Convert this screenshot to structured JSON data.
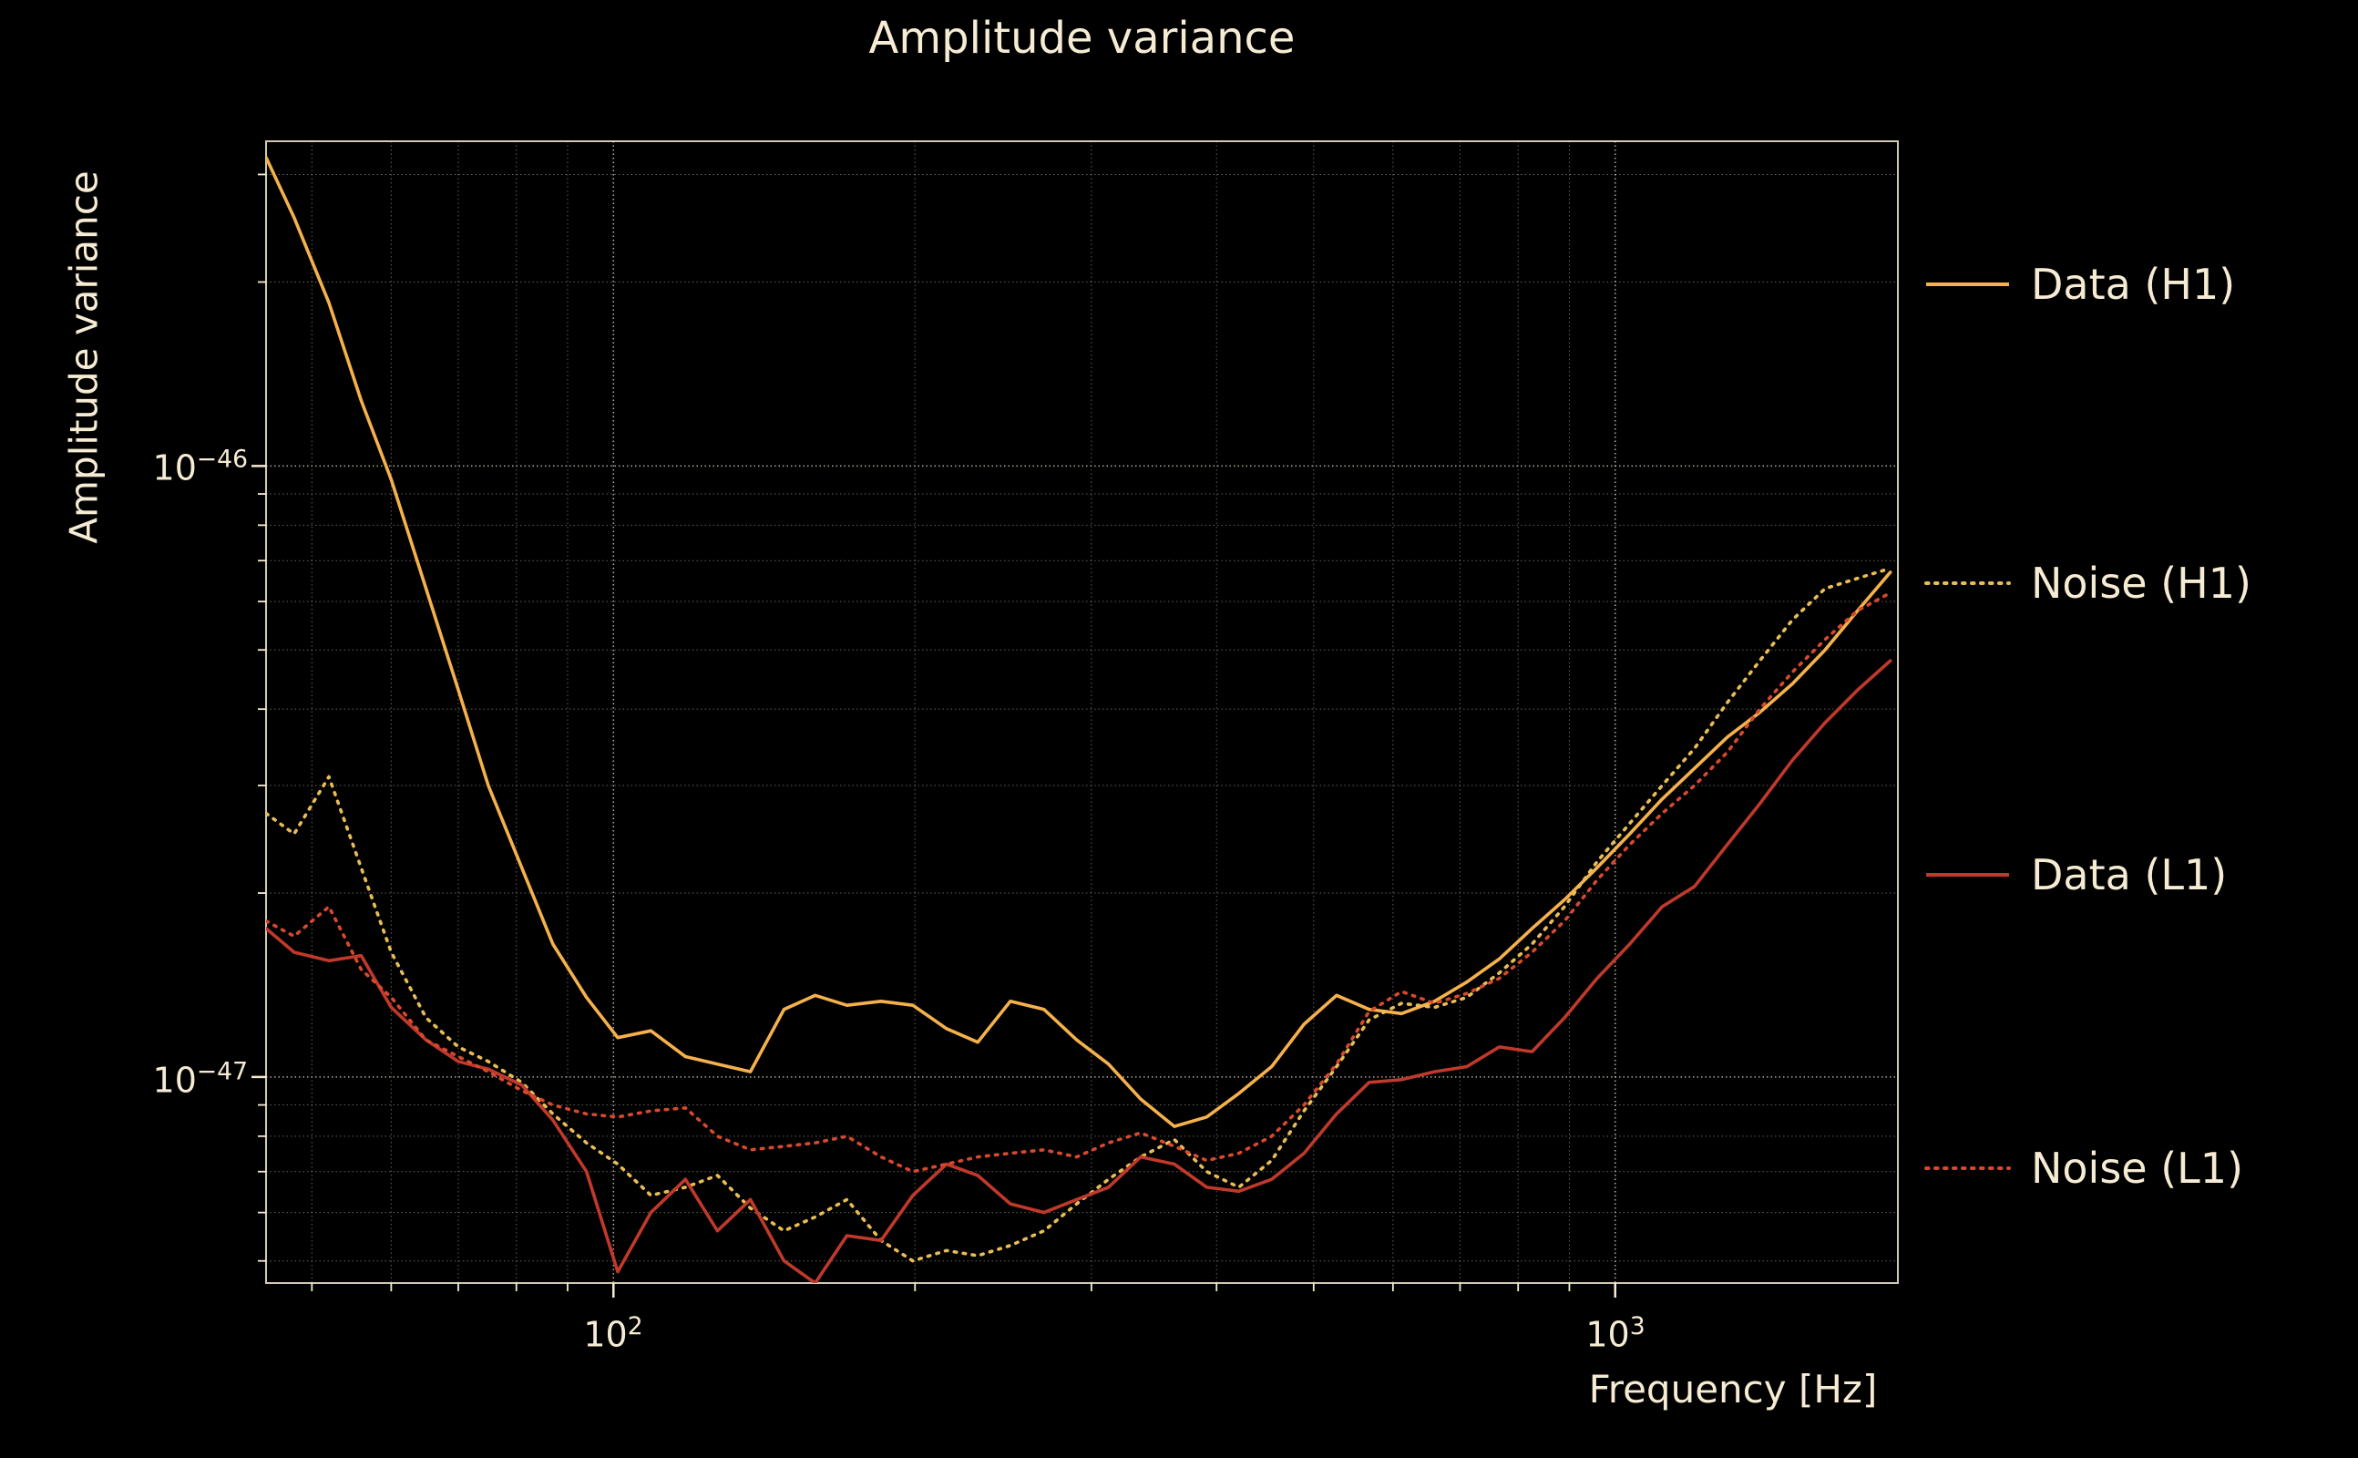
{
  "colors": {
    "bg": "#000000",
    "text": "#f6ecd4",
    "grid": "#eae3d0"
  },
  "axes": {
    "x_ticks": [
      {
        "base": "10",
        "exp": "2"
      },
      {
        "base": "10",
        "exp": "3"
      }
    ],
    "y_ticks": [
      {
        "base": "10",
        "exp": "−46"
      },
      {
        "base": "10",
        "exp": "−47"
      }
    ]
  },
  "chart_data": {
    "type": "line",
    "title": "Amplitude variance",
    "xlabel": "Frequency [Hz]",
    "ylabel": "Amplitude variance",
    "xscale": "log",
    "yscale": "log",
    "xlim": [
      45,
      1915
    ],
    "ylim": [
      4.6e-48,
      3.4e-46
    ],
    "grid": true,
    "legend_position": "right-outside",
    "y_unit": 1e-48,
    "y_unit_note": "series values are multiples of 1e-48",
    "x": [
      45,
      48,
      52,
      56,
      60,
      65,
      70,
      75,
      81,
      87,
      94,
      101,
      109,
      118,
      127,
      137,
      148,
      159,
      171,
      185,
      199,
      215,
      231,
      249,
      269,
      290,
      312,
      336,
      363,
      391,
      421,
      454,
      489,
      527,
      568,
      612,
      660,
      711,
      766,
      826,
      890,
      959,
      1034,
      1114,
      1200,
      1294,
      1394,
      1503,
      1620,
      1746,
      1882
    ],
    "series": [
      {
        "name": "Data (H1)",
        "style": "solid",
        "color": "#f5b14b",
        "values": [
          320,
          255,
          185,
          128,
          95,
          63,
          43,
          30,
          22,
          16.5,
          13.5,
          11.6,
          11.9,
          10.8,
          10.5,
          10.2,
          12.9,
          13.6,
          13.1,
          13.3,
          13.1,
          12.0,
          11.4,
          13.3,
          12.9,
          11.5,
          10.5,
          9.2,
          8.3,
          8.6,
          9.4,
          10.4,
          12.2,
          13.6,
          12.9,
          12.7,
          13.3,
          14.3,
          15.6,
          17.5,
          19.5,
          22,
          25,
          28.5,
          32,
          36,
          39.5,
          44,
          50,
          58,
          67
        ]
      },
      {
        "name": "Noise (H1)",
        "style": "dotted",
        "color": "#e9bd55",
        "values": [
          27,
          25,
          31,
          22,
          16,
          12.5,
          11.2,
          10.6,
          9.8,
          8.7,
          7.8,
          7.2,
          6.4,
          6.6,
          6.9,
          6.1,
          5.6,
          5.9,
          6.3,
          5.4,
          5.0,
          5.2,
          5.1,
          5.3,
          5.6,
          6.2,
          6.8,
          7.4,
          7.9,
          7.0,
          6.6,
          7.3,
          8.8,
          10.4,
          12.4,
          13.2,
          13.0,
          13.5,
          14.8,
          16.5,
          19,
          22.5,
          26,
          30,
          34.5,
          41,
          48,
          56,
          63,
          65.5,
          68
        ]
      },
      {
        "name": "Data (L1)",
        "style": "solid",
        "color": "#c0392b",
        "values": [
          17.5,
          16,
          15.5,
          15.8,
          13,
          11.5,
          10.6,
          10.3,
          9.7,
          8.5,
          7.0,
          4.8,
          6.0,
          6.8,
          5.6,
          6.3,
          5.0,
          4.6,
          5.5,
          5.4,
          6.4,
          7.2,
          6.9,
          6.2,
          6.0,
          6.3,
          6.6,
          7.4,
          7.2,
          6.6,
          6.5,
          6.8,
          7.5,
          8.7,
          9.8,
          9.9,
          10.2,
          10.4,
          11.2,
          11.0,
          12.5,
          14.5,
          16.5,
          19,
          20.5,
          24,
          28,
          33,
          38,
          43,
          48
        ]
      },
      {
        "name": "Noise (L1)",
        "style": "dotted",
        "color": "#d6492f",
        "values": [
          18,
          17,
          19,
          15,
          13.5,
          11.5,
          10.8,
          10.2,
          9.5,
          9.0,
          8.7,
          8.6,
          8.8,
          8.9,
          8.0,
          7.6,
          7.7,
          7.8,
          8.0,
          7.4,
          7.0,
          7.2,
          7.4,
          7.5,
          7.6,
          7.4,
          7.8,
          8.1,
          7.7,
          7.3,
          7.5,
          8.0,
          9.0,
          10.5,
          12.8,
          13.8,
          13.2,
          13.7,
          14.5,
          16.0,
          18,
          21,
          24,
          27,
          30,
          34,
          40,
          46,
          52,
          58,
          62
        ]
      }
    ]
  }
}
